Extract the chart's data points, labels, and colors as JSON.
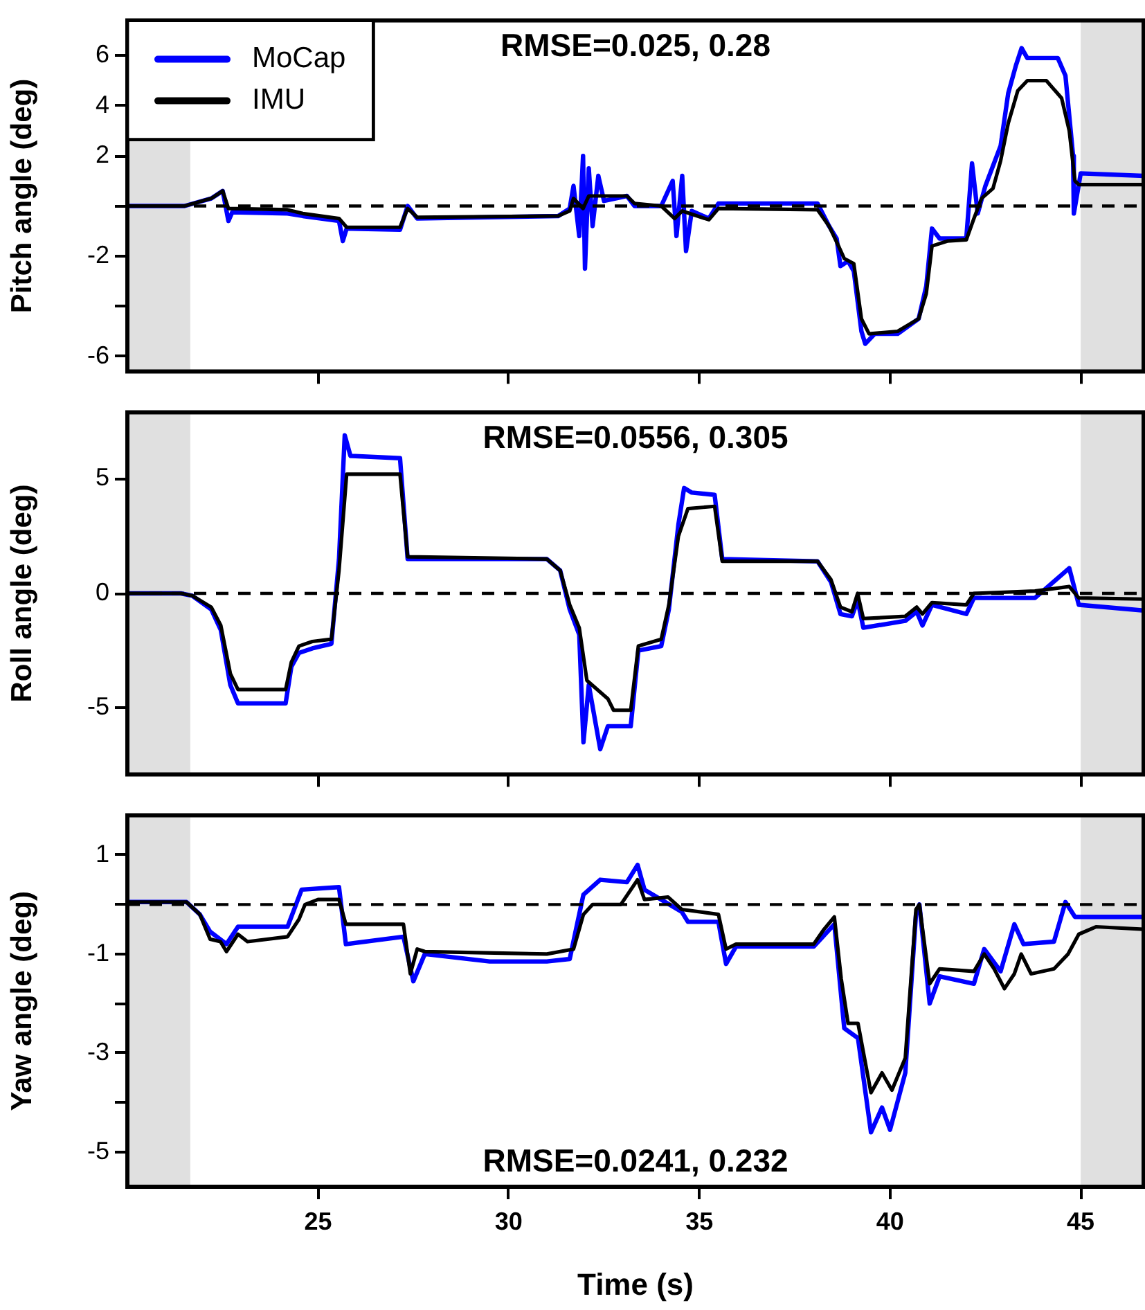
{
  "chart_data": [
    {
      "type": "line",
      "ylabel": "Pitch angle (deg)",
      "annotations": [
        "RMSE=0.025, 0.28"
      ],
      "xlim": [
        20,
        46.65
      ],
      "xticks": [
        25,
        30,
        35,
        40,
        45
      ],
      "ylim": [
        -6.6,
        7.4
      ],
      "yticks": [
        -6,
        {
          "value": -4,
          "label": null
        },
        -2,
        {
          "value": 0,
          "label": null
        },
        2,
        4,
        6
      ],
      "tick_labels": "y",
      "grid": false,
      "legend": "top left",
      "line_style": "solid",
      "marker": "none",
      "bands": [
        {
          "axis": "x",
          "from": 20,
          "to": 21.65,
          "color": "#e0e0e0"
        },
        {
          "axis": "x",
          "from": 45,
          "to": 46.65,
          "color": "#e0e0e0"
        }
      ],
      "ref_lines": [
        {
          "axis": "y",
          "value": 0,
          "color": "#000000",
          "line_style": "dashed"
        }
      ],
      "series": [
        {
          "name": "MoCap",
          "color": "#0000ff",
          "x": [
            20,
            21.5,
            22.2,
            22.5,
            22.65,
            22.75,
            24.2,
            24.6,
            25.55,
            25.65,
            25.75,
            27.15,
            27.35,
            27.6,
            31.3,
            31.6,
            31.7,
            31.85,
            31.95,
            32.0,
            32.1,
            32.2,
            32.35,
            32.5,
            33.1,
            33.3,
            34,
            34.3,
            34.4,
            34.55,
            34.65,
            34.8,
            35.25,
            35.5,
            38.1,
            38.4,
            38.6,
            38.7,
            38.9,
            39.05,
            39.25,
            39.35,
            39.6,
            40.2,
            40.75,
            40.95,
            41.1,
            41.3,
            42,
            42.15,
            42.3,
            42.5,
            42.9,
            43.1,
            43.3,
            43.45,
            43.6,
            44.4,
            44.6,
            44.8,
            44.82,
            45,
            46.65
          ],
          "values": [
            0,
            0,
            0.3,
            0.6,
            -0.6,
            -0.25,
            -0.3,
            -0.4,
            -0.6,
            -1.4,
            -0.9,
            -0.95,
            0,
            -0.5,
            -0.4,
            -0.1,
            0.8,
            -1.2,
            2,
            -2.5,
            1.5,
            -0.8,
            1.2,
            0.2,
            0.4,
            0,
            0,
            1,
            -1.2,
            1.2,
            -1.8,
            -0.2,
            -0.5,
            0.1,
            0.1,
            -0.8,
            -1.3,
            -2.4,
            -2.2,
            -2.6,
            -5,
            -5.5,
            -5.1,
            -5.1,
            -4.5,
            -3.2,
            -0.9,
            -1.3,
            -1.3,
            1.7,
            -0.3,
            0.8,
            2.4,
            4.5,
            5.6,
            6.3,
            5.9,
            5.9,
            5.2,
            2,
            -0.3,
            1.3,
            1.2
          ]
        },
        {
          "name": "IMU",
          "color": "#000000",
          "x": [
            20,
            21.5,
            22.2,
            22.5,
            22.65,
            24.2,
            24.6,
            25.55,
            25.75,
            27.15,
            27.35,
            27.6,
            31.3,
            31.6,
            31.7,
            31.95,
            32.1,
            33.1,
            33.3,
            34,
            34.35,
            34.55,
            35.25,
            35.5,
            38.1,
            38.4,
            38.65,
            38.8,
            39.05,
            39.25,
            39.45,
            40.2,
            40.75,
            40.95,
            41.1,
            41.5,
            42,
            42.2,
            42.4,
            42.7,
            42.9,
            43.1,
            43.35,
            43.6,
            44.1,
            44.5,
            44.7,
            44.85,
            44.95,
            46.65
          ],
          "values": [
            0,
            0,
            0.3,
            0.6,
            -0.1,
            -0.15,
            -0.3,
            -0.5,
            -0.85,
            -0.85,
            -0.1,
            -0.45,
            -0.4,
            -0.2,
            0.3,
            -0.1,
            0.4,
            0.4,
            0.1,
            0,
            -0.5,
            -0.2,
            -0.55,
            -0.1,
            -0.15,
            -0.8,
            -1.6,
            -2.1,
            -2.3,
            -4.5,
            -5.1,
            -5,
            -4.5,
            -3.5,
            -1.6,
            -1.4,
            -1.35,
            -0.5,
            0.3,
            0.7,
            1.8,
            3.3,
            4.6,
            5,
            5,
            4.3,
            3,
            1,
            0.85,
            0.85
          ]
        }
      ]
    },
    {
      "type": "line",
      "ylabel": "Roll angle (deg)",
      "annotations": [
        "RMSE=0.0556, 0.305"
      ],
      "xlim": [
        20,
        46.65
      ],
      "xticks": [
        25,
        30,
        35,
        40,
        45
      ],
      "ylim": [
        -7.9,
        7.9
      ],
      "yticks": [
        -5,
        0,
        5
      ],
      "tick_labels": "y",
      "grid": false,
      "line_style": "solid",
      "marker": "none",
      "bands": [
        {
          "axis": "x",
          "from": 20,
          "to": 21.65,
          "color": "#e0e0e0"
        },
        {
          "axis": "x",
          "from": 45,
          "to": 46.65,
          "color": "#e0e0e0"
        }
      ],
      "ref_lines": [
        {
          "axis": "y",
          "value": 0,
          "color": "#000000",
          "line_style": "dashed"
        }
      ],
      "series": [
        {
          "color": "#0000ff",
          "x": [
            20,
            21.4,
            21.7,
            22.2,
            22.45,
            22.7,
            22.9,
            24.15,
            24.3,
            24.5,
            24.85,
            25.35,
            25.55,
            25.7,
            25.85,
            27.15,
            27.35,
            31,
            31.35,
            31.6,
            31.85,
            31.96,
            32.1,
            32.4,
            32.6,
            33.2,
            33.4,
            34,
            34.2,
            34.45,
            34.6,
            34.8,
            35.4,
            35.6,
            38.1,
            38.45,
            38.7,
            39,
            39.15,
            39.3,
            40.4,
            40.7,
            40.85,
            41.1,
            42,
            42.2,
            43.8,
            44.7,
            44.95,
            46.65
          ],
          "values": [
            0,
            0,
            -0.1,
            -0.7,
            -1.6,
            -4,
            -4.8,
            -4.8,
            -3.2,
            -2.6,
            -2.4,
            -2.2,
            1.5,
            6.9,
            6,
            5.9,
            1.5,
            1.5,
            1,
            -0.7,
            -1.8,
            -6.5,
            -4,
            -6.8,
            -5.8,
            -5.8,
            -2.5,
            -2.3,
            -0.7,
            3,
            4.6,
            4.4,
            4.3,
            1.5,
            1.4,
            0.5,
            -0.9,
            -1,
            -0.3,
            -1.5,
            -1.2,
            -0.8,
            -1.4,
            -0.5,
            -0.9,
            -0.2,
            -0.2,
            1.1,
            -0.5,
            -0.75
          ]
        },
        {
          "color": "#000000",
          "x": [
            20,
            21.4,
            21.7,
            22.2,
            22.45,
            22.7,
            22.9,
            24.15,
            24.3,
            24.5,
            24.85,
            25.35,
            25.55,
            25.75,
            27.15,
            27.35,
            31,
            31.35,
            31.6,
            31.85,
            32.05,
            32.6,
            32.75,
            33.2,
            33.4,
            34,
            34.2,
            34.45,
            34.7,
            35.4,
            35.6,
            38.1,
            38.45,
            38.7,
            39,
            39.15,
            39.3,
            40.4,
            40.7,
            40.85,
            41.1,
            42,
            42.2,
            43.8,
            44.7,
            44.95,
            46.65
          ],
          "values": [
            0,
            0,
            -0.1,
            -0.6,
            -1.4,
            -3.5,
            -4.2,
            -4.2,
            -3,
            -2.3,
            -2.1,
            -2,
            1,
            5.2,
            5.2,
            1.6,
            1.5,
            1,
            -0.5,
            -1.5,
            -3.8,
            -4.6,
            -5.1,
            -5.1,
            -2.3,
            -2,
            -0.5,
            2.5,
            3.7,
            3.8,
            1.4,
            1.4,
            0.6,
            -0.6,
            -0.8,
            0,
            -1.1,
            -1,
            -0.6,
            -0.9,
            -0.4,
            -0.5,
            0,
            0.1,
            0.3,
            -0.2,
            -0.25
          ]
        }
      ]
    },
    {
      "type": "line",
      "xlabel": "Time (s)",
      "ylabel": "Yaw angle (deg)",
      "annotations": [
        "RMSE=0.0241, 0.232"
      ],
      "xlim": [
        20,
        46.65
      ],
      "xticks": [
        25,
        30,
        35,
        40,
        45
      ],
      "ylim": [
        -5.7,
        1.8
      ],
      "yticks": [
        -5,
        {
          "value": -4,
          "label": null
        },
        -3,
        {
          "value": -2,
          "label": null
        },
        -1,
        {
          "value": 0,
          "label": null
        },
        1
      ],
      "grid": false,
      "line_style": "solid",
      "marker": "none",
      "bands": [
        {
          "axis": "x",
          "from": 20,
          "to": 21.65,
          "color": "#e0e0e0"
        },
        {
          "axis": "x",
          "from": 45,
          "to": 46.65,
          "color": "#e0e0e0"
        }
      ],
      "ref_lines": [
        {
          "axis": "y",
          "value": 0,
          "color": "#000000",
          "line_style": "dashed"
        }
      ],
      "series": [
        {
          "color": "#0000ff",
          "x": [
            20,
            21.55,
            21.9,
            22.17,
            22.6,
            22.9,
            24.2,
            24.57,
            25.55,
            25.73,
            27.24,
            27.5,
            27.8,
            29.5,
            31,
            31.6,
            31.96,
            32.4,
            33.1,
            33.38,
            33.56,
            34.54,
            34.7,
            35.5,
            35.7,
            35.96,
            38,
            38.54,
            38.8,
            39.16,
            39.5,
            39.79,
            40,
            40.4,
            40.68,
            40.77,
            41.04,
            41.3,
            42.2,
            42.47,
            42.9,
            43.26,
            43.5,
            44.3,
            44.6,
            44.85,
            46.65
          ],
          "values": [
            0.05,
            0.05,
            -0.2,
            -0.55,
            -0.8,
            -0.45,
            -0.45,
            0.3,
            0.35,
            -0.8,
            -0.65,
            -1.55,
            -1,
            -1.15,
            -1.15,
            -1.1,
            0.2,
            0.5,
            0.45,
            0.8,
            0.3,
            -0.15,
            -0.35,
            -0.35,
            -1.2,
            -0.85,
            -0.85,
            -0.4,
            -2.5,
            -2.7,
            -4.6,
            -4.1,
            -4.55,
            -3.4,
            -0.2,
            0,
            -2,
            -1.45,
            -1.6,
            -0.9,
            -1.35,
            -0.4,
            -0.8,
            -0.75,
            0.05,
            -0.25,
            -0.25
          ]
        },
        {
          "color": "#000000",
          "x": [
            20,
            21.55,
            21.9,
            22.17,
            22.44,
            22.6,
            22.9,
            23.15,
            24.2,
            24.5,
            24.66,
            25,
            25.55,
            25.73,
            27.24,
            27.42,
            27.6,
            27.8,
            31,
            31.7,
            31.96,
            32.2,
            32.94,
            33.38,
            33.56,
            34.18,
            34.54,
            35.5,
            35.7,
            35.96,
            38,
            38.27,
            38.54,
            38.72,
            38.9,
            39.16,
            39.5,
            39.79,
            40.05,
            40.4,
            40.68,
            40.77,
            41.04,
            41.3,
            42.2,
            42.47,
            42.73,
            43,
            43.26,
            43.44,
            43.7,
            44.3,
            44.67,
            44.95,
            45.4,
            46.65
          ],
          "values": [
            0.05,
            0.05,
            -0.2,
            -0.7,
            -0.75,
            -0.95,
            -0.6,
            -0.75,
            -0.65,
            -0.3,
            0,
            0.1,
            0.1,
            -0.4,
            -0.4,
            -1.4,
            -0.9,
            -0.95,
            -1,
            -0.9,
            -0.2,
            0,
            0,
            0.5,
            0.1,
            0.15,
            -0.1,
            -0.2,
            -0.9,
            -0.8,
            -0.8,
            -0.5,
            -0.25,
            -1.5,
            -2.4,
            -2.4,
            -3.8,
            -3.4,
            -3.75,
            -3.1,
            -0.1,
            0,
            -1.6,
            -1.3,
            -1.35,
            -1,
            -1.3,
            -1.7,
            -1.4,
            -1,
            -1.4,
            -1.3,
            -1,
            -0.6,
            -0.45,
            -0.5
          ]
        }
      ]
    }
  ]
}
